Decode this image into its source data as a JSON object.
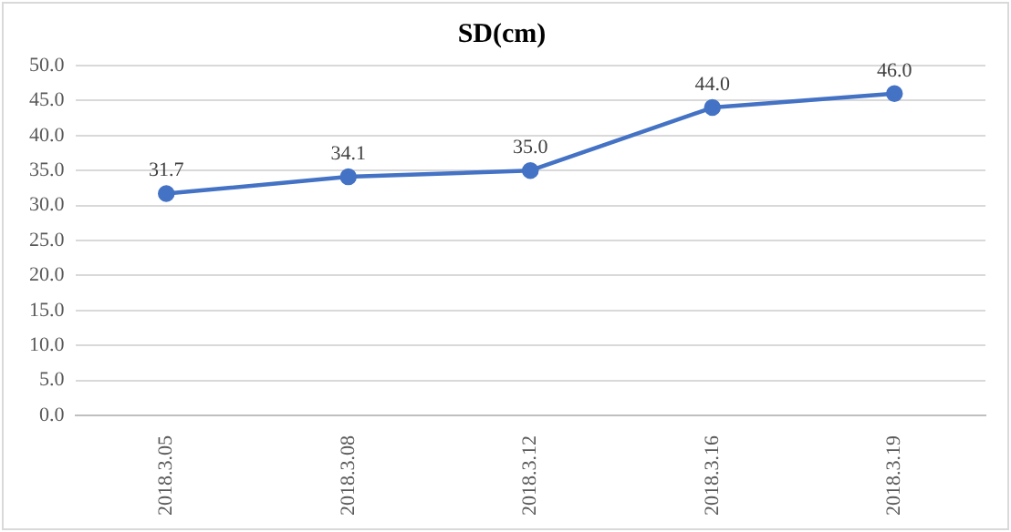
{
  "chart_data": {
    "type": "line",
    "title": "SD(cm)",
    "categories": [
      "2018.3.05",
      "2018.3.08",
      "2018.3.12",
      "2018.3.16",
      "2018.3.19"
    ],
    "series": [
      {
        "color": "#4472c4",
        "values": [
          31.7,
          34.1,
          35.0,
          44.0,
          46.0
        ],
        "value_labels": [
          "31.7",
          "34.1",
          "35.0",
          "44.0",
          "46.0"
        ]
      }
    ],
    "ylim": [
      0,
      50
    ],
    "yticks": [
      {
        "value": 0,
        "label": "0.0"
      },
      {
        "value": 5,
        "label": "5.0"
      },
      {
        "value": 10,
        "label": "10.0"
      },
      {
        "value": 15,
        "label": "15.0"
      },
      {
        "value": 20,
        "label": "20.0"
      },
      {
        "value": 25,
        "label": "25.0"
      },
      {
        "value": 30,
        "label": "30.0"
      },
      {
        "value": 35,
        "label": "35.0"
      },
      {
        "value": 40,
        "label": "40.0"
      },
      {
        "value": 45,
        "label": "45.0"
      },
      {
        "value": 50,
        "label": "50.0"
      }
    ],
    "grid": "y",
    "legend": false,
    "marker": "circle",
    "line_style": "solid"
  }
}
